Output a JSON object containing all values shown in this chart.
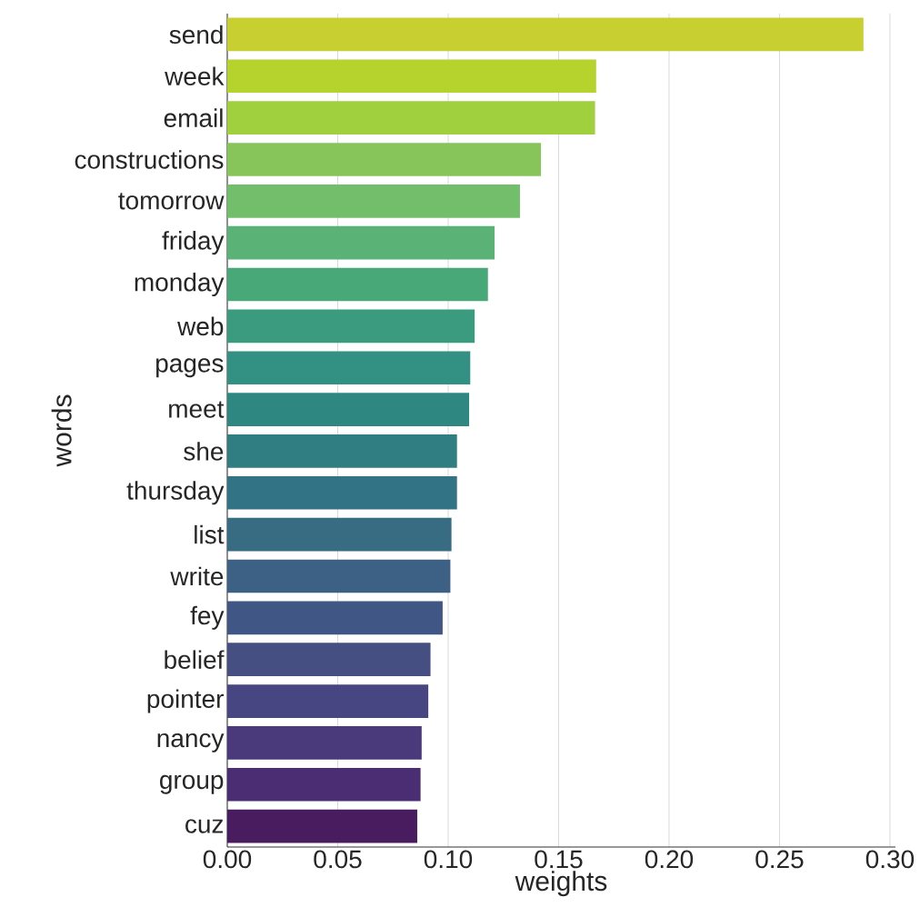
{
  "chart_data": {
    "type": "bar",
    "orientation": "horizontal",
    "xlabel": "weights",
    "ylabel": "words",
    "categories": [
      "send",
      "week",
      "email",
      "constructions",
      "tomorrow",
      "friday",
      "monday",
      "web",
      "pages",
      "meet",
      "she",
      "thursday",
      "list",
      "write",
      "fey",
      "belief",
      "pointer",
      "nancy",
      "group",
      "cuz"
    ],
    "values": [
      0.288,
      0.167,
      0.1665,
      0.142,
      0.1325,
      0.121,
      0.118,
      0.112,
      0.11,
      0.1095,
      0.104,
      0.104,
      0.1015,
      0.101,
      0.0975,
      0.092,
      0.091,
      0.088,
      0.0875,
      0.086
    ],
    "colors": [
      "#c8cf30",
      "#b5d22d",
      "#a0d03e",
      "#87c55b",
      "#72be6b",
      "#5ab276",
      "#48a878",
      "#3a9b7e",
      "#329182",
      "#2e8780",
      "#307d82",
      "#327485",
      "#386c82",
      "#3d6184",
      "#405685",
      "#464f81",
      "#484682",
      "#4a3a7c",
      "#4a2d72",
      "#481c5f"
    ],
    "xlim": [
      0,
      0.3025
    ],
    "xticks": [
      {
        "value": 0,
        "label": "0.00"
      },
      {
        "value": 0.05,
        "label": "0.05"
      },
      {
        "value": 0.1,
        "label": "0.10"
      },
      {
        "value": 0.15,
        "label": "0.15"
      },
      {
        "value": 0.2,
        "label": "0.20"
      },
      {
        "value": 0.25,
        "label": "0.25"
      },
      {
        "value": 0.3,
        "label": "0.30"
      }
    ],
    "grid": "x"
  }
}
